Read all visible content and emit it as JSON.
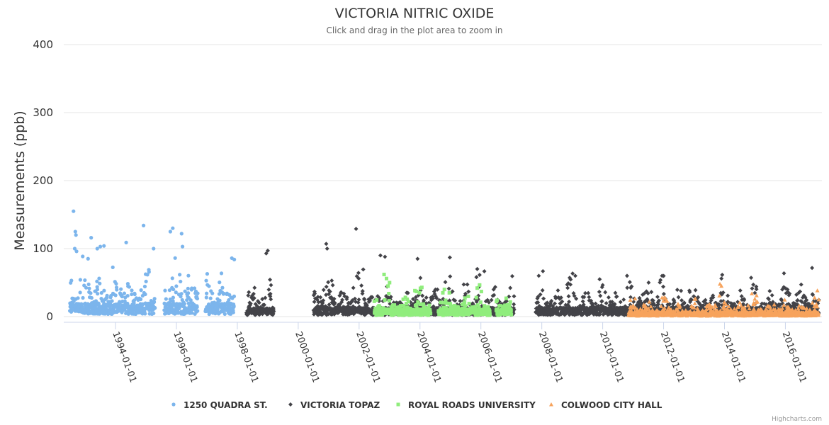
{
  "chart_data": {
    "type": "scatter",
    "title": "VICTORIA NITRIC OXIDE",
    "subtitle": "Click and drag in the plot area to zoom in",
    "ylabel": "Measurements (ppb)",
    "xlabel": "",
    "ylim": [
      0,
      400
    ],
    "yticks": [
      0,
      100,
      200,
      300,
      400
    ],
    "xlim": [
      1992.3,
      2017.2
    ],
    "xticks": [
      {
        "label": "1994-01-01",
        "value": 1994.0
      },
      {
        "label": "1996-01-01",
        "value": 1996.0
      },
      {
        "label": "1998-01-01",
        "value": 1998.0
      },
      {
        "label": "2000-01-01",
        "value": 2000.0
      },
      {
        "label": "2002-01-01",
        "value": 2002.0
      },
      {
        "label": "2004-01-01",
        "value": 2004.0
      },
      {
        "label": "2006-01-01",
        "value": 2006.0
      },
      {
        "label": "2008-01-01",
        "value": 2008.0
      },
      {
        "label": "2010-01-01",
        "value": 2010.0
      },
      {
        "label": "2012-01-01",
        "value": 2012.0
      },
      {
        "label": "2014-01-01",
        "value": 2014.0
      },
      {
        "label": "2016-01-01",
        "value": 2016.0
      }
    ],
    "grid": true,
    "legend_position": "bottom-center",
    "series": [
      {
        "name": "1250 QUADRA ST.",
        "color": "#7cb5ec",
        "marker": "circle",
        "range": [
          1992.5,
          1997.9
        ],
        "gaps": [
          [
            1995.3,
            1995.6
          ],
          [
            1996.7,
            1996.95
          ]
        ],
        "base": 18,
        "amp": 30,
        "winter_peak": 65,
        "outliers": [
          [
            1992.62,
            155
          ],
          [
            1992.68,
            125
          ],
          [
            1992.7,
            120
          ],
          [
            1992.66,
            100
          ],
          [
            1992.72,
            96
          ],
          [
            1993.2,
            116
          ],
          [
            1993.5,
            103
          ],
          [
            1993.62,
            104
          ],
          [
            1993.4,
            100
          ],
          [
            1994.35,
            109
          ],
          [
            1994.92,
            134
          ],
          [
            1995.88,
            130
          ],
          [
            1995.8,
            125
          ],
          [
            1996.17,
            122
          ],
          [
            1996.2,
            103
          ],
          [
            1995.25,
            100
          ],
          [
            1997.82,
            86
          ],
          [
            1997.9,
            84
          ]
        ]
      },
      {
        "name": "VICTORIA TOPAZ",
        "color": "#434348",
        "marker": "diamond",
        "range": [
          1998.3,
          2017.1
        ],
        "gaps": [
          [
            1999.2,
            2000.5
          ],
          [
            2007.1,
            2007.8
          ]
        ],
        "base": 12,
        "amp": 22,
        "winter_peak": 45,
        "outliers": [
          [
            1999.0,
            97
          ],
          [
            1998.95,
            93
          ],
          [
            2000.92,
            107
          ],
          [
            2000.95,
            100
          ],
          [
            2001.9,
            129
          ],
          [
            2002.7,
            90
          ],
          [
            2002.85,
            88
          ],
          [
            2003.92,
            85
          ],
          [
            2004.98,
            87
          ],
          [
            2005.88,
            70
          ],
          [
            2007.9,
            60
          ],
          [
            2009.1,
            60
          ],
          [
            2009.9,
            55
          ],
          [
            2010.8,
            60
          ],
          [
            2011.95,
            60
          ],
          [
            2013.9,
            56
          ],
          [
            2015.9,
            40
          ],
          [
            2016.9,
            32
          ]
        ]
      },
      {
        "name": "ROYAL ROADS UNIVERSITY",
        "color": "#90ed7d",
        "marker": "square",
        "range": [
          2002.5,
          2007.0
        ],
        "gaps": [
          [
            2004.35,
            2004.6
          ],
          [
            2006.3,
            2006.5
          ]
        ],
        "base": 10,
        "amp": 12,
        "winter_peak": 32,
        "outliers": [
          [
            2002.82,
            62
          ],
          [
            2002.9,
            56
          ],
          [
            2003.0,
            50
          ],
          [
            2003.88,
            37
          ],
          [
            2004.75,
            35
          ],
          [
            2005.85,
            28
          ],
          [
            2006.83,
            27
          ]
        ]
      },
      {
        "name": "COLWOOD CITY HALL",
        "color": "#f7a35c",
        "marker": "triangle",
        "range": [
          2010.85,
          2017.1
        ],
        "gaps": [],
        "base": 6,
        "amp": 10,
        "winter_peak": 26,
        "outliers": [
          [
            2011.95,
            28
          ],
          [
            2013.85,
            48
          ],
          [
            2013.9,
            45
          ],
          [
            2014.95,
            18
          ],
          [
            2015.95,
            17
          ],
          [
            2016.95,
            15
          ]
        ]
      }
    ]
  },
  "credits": "Highcharts.com"
}
